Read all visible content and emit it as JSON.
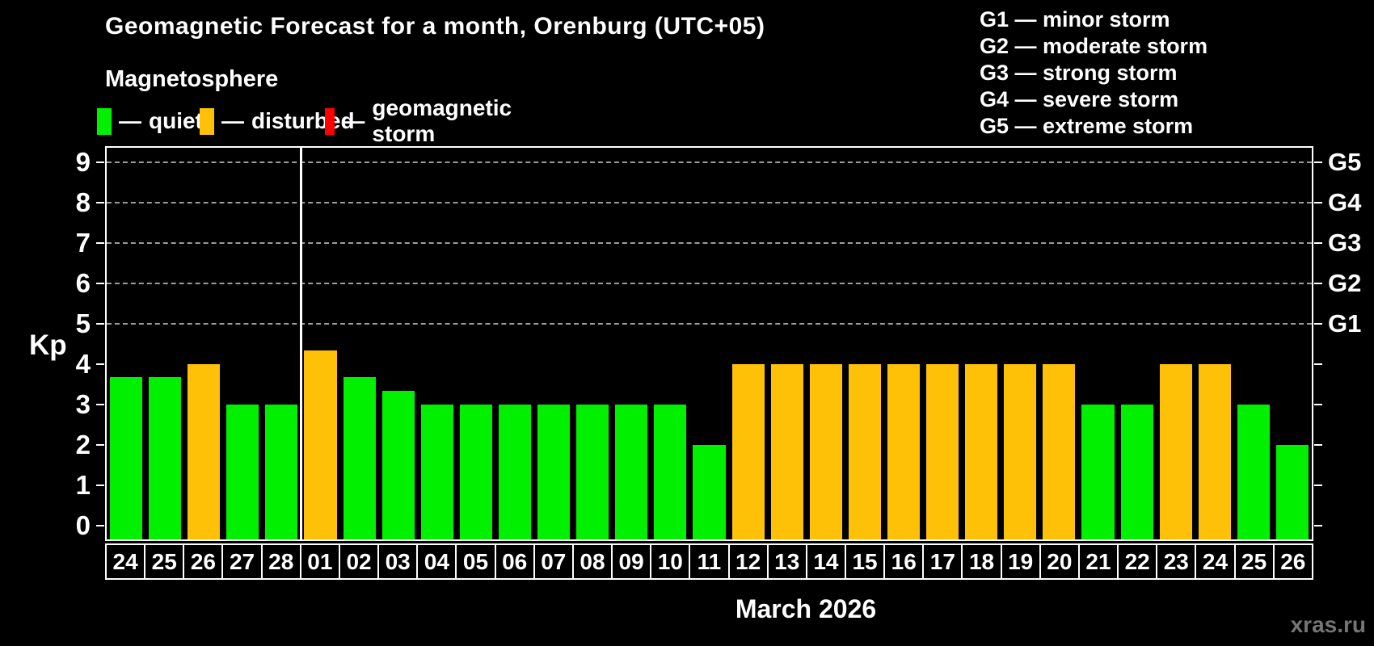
{
  "title": "Geomagnetic Forecast for a month, Orenburg (UTC+05)",
  "subtitle": "Magnetosphere",
  "legend": {
    "separator": "—",
    "items": [
      {
        "key": "quiet",
        "label": "quiet",
        "color": "#00F000"
      },
      {
        "key": "disturbed",
        "label": "disturbed",
        "color": "#FFC107"
      },
      {
        "key": "storm",
        "label": "geomagnetic storm",
        "color": "#FF0000"
      }
    ]
  },
  "g_legend": {
    "separator": "—",
    "items": [
      {
        "code": "G1",
        "label": "minor storm"
      },
      {
        "code": "G2",
        "label": "moderate storm"
      },
      {
        "code": "G3",
        "label": "strong storm"
      },
      {
        "code": "G4",
        "label": "severe storm"
      },
      {
        "code": "G5",
        "label": "extreme storm"
      }
    ]
  },
  "axes": {
    "y_title": "Kp",
    "y_ticks": [
      "0",
      "1",
      "2",
      "3",
      "4",
      "5",
      "6",
      "7",
      "8",
      "9"
    ],
    "right_scale": [
      {
        "label": "G1",
        "kp": 5
      },
      {
        "label": "G2",
        "kp": 6
      },
      {
        "label": "G3",
        "kp": 7
      },
      {
        "label": "G4",
        "kp": 8
      },
      {
        "label": "G5",
        "kp": 9
      }
    ],
    "x_title": "March 2026"
  },
  "watermark": "xras.ru",
  "chart_data": {
    "type": "bar",
    "categories": [
      "24",
      "25",
      "26",
      "27",
      "28",
      "01",
      "02",
      "03",
      "04",
      "05",
      "06",
      "07",
      "08",
      "09",
      "10",
      "11",
      "12",
      "13",
      "14",
      "15",
      "16",
      "17",
      "18",
      "19",
      "20",
      "21",
      "22",
      "23",
      "24",
      "25",
      "26"
    ],
    "values": [
      3.67,
      3.67,
      4,
      3,
      3,
      4.33,
      3.67,
      3.33,
      3,
      3,
      3,
      3,
      3,
      3,
      3,
      2,
      4,
      4,
      4,
      4,
      4,
      4,
      4,
      4,
      4,
      3,
      3,
      4,
      4,
      3,
      2
    ],
    "statuses": [
      "quiet",
      "quiet",
      "disturbed",
      "quiet",
      "quiet",
      "disturbed",
      "quiet",
      "quiet",
      "quiet",
      "quiet",
      "quiet",
      "quiet",
      "quiet",
      "quiet",
      "quiet",
      "quiet",
      "disturbed",
      "disturbed",
      "disturbed",
      "disturbed",
      "disturbed",
      "disturbed",
      "disturbed",
      "disturbed",
      "disturbed",
      "quiet",
      "quiet",
      "disturbed",
      "disturbed",
      "quiet",
      "quiet"
    ],
    "status_colors": {
      "quiet": "#00F000",
      "disturbed": "#FFC107",
      "storm": "#FF0000"
    },
    "ylim": [
      0,
      9
    ],
    "gridlines_at": [
      5,
      6,
      7,
      8,
      9
    ],
    "month_separator_before_index": 5,
    "legend_position": "top",
    "grid": "dashed horizontal at storm levels only"
  }
}
